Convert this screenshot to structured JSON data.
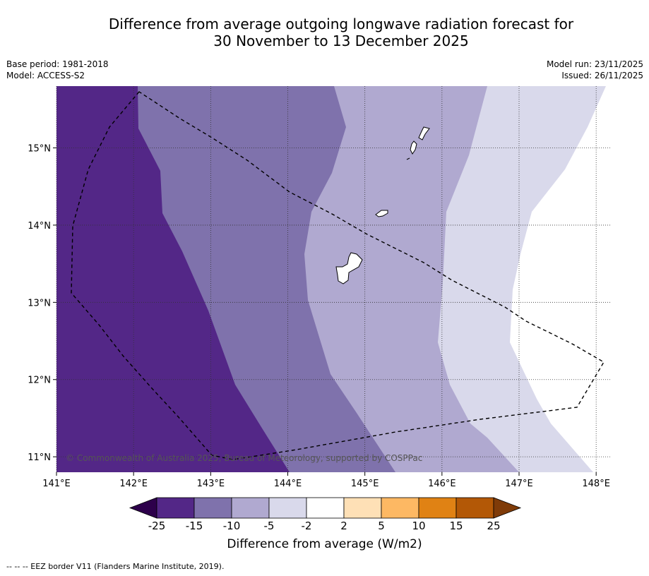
{
  "title": {
    "line1": "Difference from average outgoing longwave radiation forecast for",
    "line2": "30 November to 13 December 2025"
  },
  "meta_left": {
    "base_period": "Base period: 1981-2018",
    "model": "Model: ACCESS-S2"
  },
  "meta_right": {
    "model_run": "Model run: 23/11/2025",
    "issued": "Issued: 26/11/2025"
  },
  "map": {
    "lon_range": [
      141,
      148.2
    ],
    "lat_range": [
      10.8,
      15.8
    ],
    "lon_ticks": [
      {
        "value": 141,
        "label": "141°E"
      },
      {
        "value": 142,
        "label": "142°E"
      },
      {
        "value": 143,
        "label": "143°E"
      },
      {
        "value": 144,
        "label": "144°E"
      },
      {
        "value": 145,
        "label": "145°E"
      },
      {
        "value": 146,
        "label": "146°E"
      },
      {
        "value": 147,
        "label": "147°E"
      },
      {
        "value": 148,
        "label": "148°E"
      }
    ],
    "lat_ticks": [
      {
        "value": 15,
        "label": "15°N"
      },
      {
        "value": 14,
        "label": "14°N"
      },
      {
        "value": 13,
        "label": "13°N"
      },
      {
        "value": 12,
        "label": "12°N"
      },
      {
        "value": 11,
        "label": "11°N"
      }
    ],
    "copyright": "© Commonwealth of Australia 2025, Bureau of Meteorology, supported by COSPPac"
  },
  "colorbar": {
    "labels": [
      "-25",
      "-15",
      "-10",
      "-5",
      "-2",
      "2",
      "5",
      "10",
      "15",
      "25"
    ],
    "colors": [
      "#532787",
      "#7f72ac",
      "#b0a9d0",
      "#d9d9eb",
      "#ffffff",
      "#fee0b6",
      "#fdb863",
      "#e08214",
      "#b35806"
    ],
    "under_color": "#2d004b",
    "over_color": "#7f3b08",
    "title": "Difference from average (W/m2)"
  },
  "footer": "--  --  -- EEZ border V11 (Flanders Marine Institute, 2019)."
}
